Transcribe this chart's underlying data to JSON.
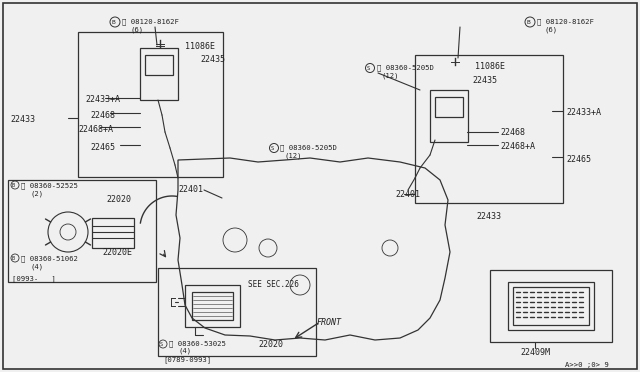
{
  "bg_color": "#f0f0f0",
  "line_color": "#333333",
  "text_color": "#222222",
  "fig_width": 6.4,
  "fig_height": 3.72,
  "page_code": "A>>0 ;0> 9",
  "labels": {
    "bolt_left": "Ⓑ 08120-8162F",
    "bolt_left2": "(6)",
    "bolt_right": "Ⓑ 08120-8162F",
    "bolt_right2": "(6)",
    "part_11086E_left": "11086E",
    "part_11086E_right": "11086E",
    "part_22435_left": "22435",
    "part_22435_right": "22435",
    "part_22433A_left": "22433+A",
    "part_22433A_right": "22433+A",
    "part_22468_left": "22468",
    "part_22468_right": "22468",
    "part_22468A_left": "22468+A",
    "part_22468A_right": "22468+A",
    "part_22465_left": "22465",
    "part_22465_right": "22465",
    "part_22433_left": "22433",
    "part_22433_right": "22433",
    "part_22401_left": "22401",
    "part_22401_right": "22401",
    "see_sec": "SEE SEC.226",
    "part_22020": "22020",
    "part_22020E": "22020E",
    "bolt_b52525": "Ⓑ 08360-52525",
    "bolt_b52525_2": "(2)",
    "bolt_b51062": "Ⓑ 08360-51062",
    "bolt_b51062_2": "(4)",
    "screw_s53025": "Ⓢ 08360-53025",
    "screw_s53025_2": "(4)",
    "screw_s5205D_left": "Ⓢ 08360-5205D",
    "screw_s5205D_left2": "(12)",
    "screw_s5205D_right": "Ⓢ 08360-5205D",
    "screw_s5205D_right2": "(12)",
    "date_code1": "[0993-   ]",
    "date_code2": "[0789-0993]",
    "part_22409M": "22409M",
    "front_label": "FRONT"
  }
}
